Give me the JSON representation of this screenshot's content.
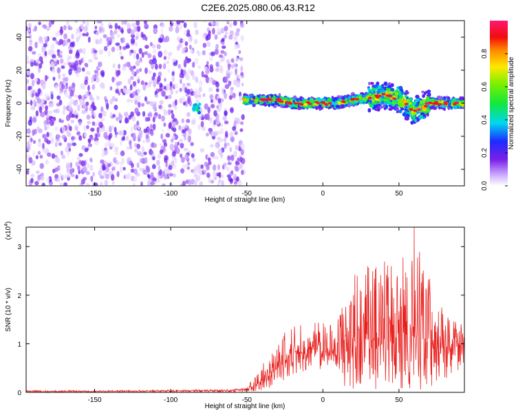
{
  "figure": {
    "title": "C2E6.2025.080.06.43.R12"
  },
  "chart_data": [
    {
      "type": "heatmap",
      "name": "spectrogram",
      "xlabel": "Height of straight line (km)",
      "ylabel": "Frequency (Hz)",
      "xlim": [
        -195,
        93
      ],
      "ylim": [
        -50,
        50
      ],
      "xticks": [
        -150,
        -100,
        -50,
        0,
        50
      ],
      "yticks": [
        -40,
        -20,
        0,
        20,
        40
      ],
      "grid": false,
      "colorbar": {
        "label": "Normalized spectral amplitude",
        "range": [
          0,
          1
        ],
        "ticks": [
          0.0,
          0.2,
          0.4,
          0.6,
          0.8
        ],
        "tick_labels": [
          "0.0",
          "0.2",
          "0.4",
          "0.6",
          "0.8"
        ],
        "colormap": "white-purple-blue-cyan-green-yellow-red-magenta"
      },
      "regions": [
        {
          "name": "noise",
          "x_range": [
            -195,
            -52
          ],
          "y_range": [
            -50,
            50
          ],
          "typical_amplitude": [
            0.02,
            0.2
          ]
        },
        {
          "name": "gap",
          "x_range": [
            -85,
            -80
          ],
          "amplitude": 0.02
        },
        {
          "name": "isolated-feature",
          "x": -83,
          "y": -3,
          "amplitude": 0.5
        },
        {
          "name": "signal-band",
          "x_range": [
            -52,
            93
          ],
          "center_frequency": 0,
          "width_hz": [
            3,
            18
          ],
          "peak_amplitude": 0.95
        }
      ],
      "signal_centerline": {
        "x": [
          -52,
          -40,
          -30,
          -20,
          -10,
          0,
          10,
          20,
          30,
          40,
          50,
          60,
          70,
          80,
          90
        ],
        "y": [
          2,
          2,
          2,
          0,
          0,
          0,
          0,
          2,
          3,
          5,
          3,
          -5,
          0,
          0,
          0
        ]
      }
    },
    {
      "type": "line",
      "name": "snr",
      "xlabel": "Height of straight line (km)",
      "ylabel": "SNR (10 * v/v)",
      "y_multiplier": "(x10",
      "y_multiplier_exp": "4",
      "y_multiplier_close": ")",
      "xlim": [
        -195,
        93
      ],
      "ylim": [
        0,
        3.4
      ],
      "xticks": [
        -150,
        -100,
        -50,
        0,
        50
      ],
      "yticks": [
        0,
        1,
        2,
        3
      ],
      "grid": false,
      "color": "#e8211f",
      "series": [
        {
          "x": [
            -195,
            -150,
            -100,
            -60,
            -50,
            -45,
            -40,
            -35,
            -30,
            -25,
            -20,
            -15,
            -10,
            -5,
            0,
            5,
            10,
            15,
            20,
            25,
            30,
            35,
            40,
            45,
            50,
            55,
            60,
            65,
            70,
            75,
            80,
            85,
            90,
            93
          ],
          "y": [
            0.02,
            0.02,
            0.03,
            0.04,
            0.06,
            0.15,
            0.25,
            0.35,
            0.5,
            0.65,
            0.85,
            0.8,
            0.9,
            1.0,
            0.85,
            0.8,
            0.85,
            0.95,
            1.05,
            1.1,
            1.1,
            1.1,
            1.1,
            1.1,
            1.15,
            1.2,
            1.2,
            1.1,
            1.05,
            0.95,
            0.9,
            0.95,
            1.1,
            1.0
          ],
          "max_y": [
            0.04,
            0.04,
            0.05,
            0.06,
            0.1,
            0.35,
            0.55,
            0.85,
            1.0,
            1.3,
            1.35,
            1.4,
            1.3,
            1.45,
            1.5,
            1.5,
            1.6,
            1.9,
            2.6,
            2.5,
            2.7,
            2.6,
            2.8,
            2.9,
            2.9,
            3.0,
            3.4,
            2.8,
            2.7,
            2.0,
            1.8,
            1.5,
            1.45,
            1.3
          ],
          "min_y": [
            0.0,
            0.0,
            0.0,
            0.0,
            0.01,
            0.02,
            0.05,
            0.1,
            0.15,
            0.25,
            0.35,
            0.4,
            0.45,
            0.5,
            0.45,
            0.4,
            0.3,
            0.1,
            0.05,
            0.05,
            0.05,
            0.05,
            0.05,
            0.05,
            0.05,
            0.05,
            0.05,
            0.05,
            0.05,
            0.05,
            0.1,
            0.3,
            0.5,
            0.6
          ]
        }
      ]
    }
  ]
}
